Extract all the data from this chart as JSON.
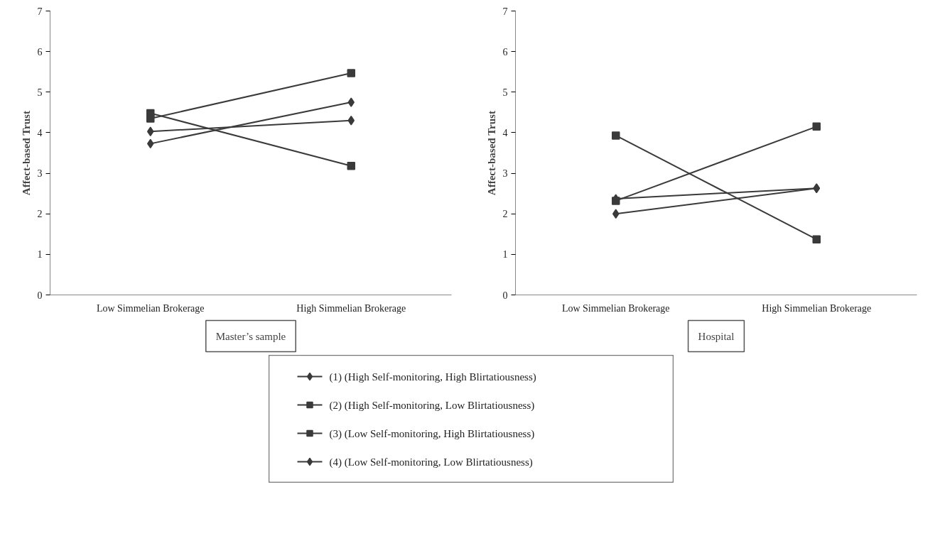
{
  "chart_data": [
    {
      "type": "line",
      "subtitle": "Master’s sample",
      "ylabel": "Affect-based Trust",
      "categories": [
        "Low Simmelian Brokerage",
        "High Simmelian Brokerage"
      ],
      "ylim": [
        0,
        7
      ],
      "yticks": [
        0,
        1,
        2,
        3,
        4,
        5,
        6,
        7
      ],
      "grid": false,
      "legend": "bottom",
      "series": [
        {
          "name": "(1)  (High Self-monitoring, High Blirtatiousness)",
          "color": "#3a3a3a",
          "marker": "diamond",
          "values": [
            4.03,
            4.3
          ]
        },
        {
          "name": "(2)  (High Self-monitoring, Low Blirtatiousness)",
          "color": "#3a3a3a",
          "marker": "square",
          "values": [
            4.35,
            5.47
          ]
        },
        {
          "name": "(3)  (Low Self-monitoring, High Blirtatiousness)",
          "color": "#3a3a3a",
          "marker": "square",
          "values": [
            4.48,
            3.18
          ]
        },
        {
          "name": "(4)  (Low Self-monitoring, Low Blirtatiousness)",
          "color": "#3a3a3a",
          "marker": "diamond",
          "values": [
            3.73,
            4.75
          ]
        }
      ]
    },
    {
      "type": "line",
      "subtitle": "Hospital",
      "ylabel": "Affect-based Trust",
      "categories": [
        "Low Simmelian Brokerage",
        "High Simmelian Brokerage"
      ],
      "ylim": [
        0,
        7
      ],
      "yticks": [
        0,
        1,
        2,
        3,
        4,
        5,
        6,
        7
      ],
      "grid": false,
      "series": [
        {
          "color": "#3a3a3a",
          "marker": "diamond",
          "values": [
            2.0,
            2.63
          ]
        },
        {
          "color": "#3a3a3a",
          "marker": "square",
          "values": [
            2.32,
            4.15
          ]
        },
        {
          "color": "#3a3a3a",
          "marker": "square",
          "values": [
            3.93,
            1.37
          ]
        },
        {
          "color": "#3a3a3a",
          "marker": "diamond",
          "values": [
            2.37,
            2.63
          ]
        }
      ]
    }
  ]
}
